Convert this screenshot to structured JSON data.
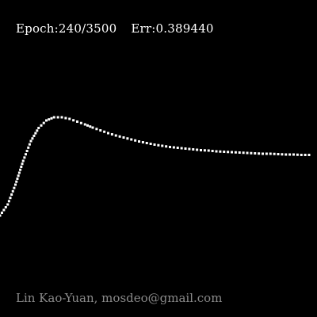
{
  "status": {
    "epoch_label": "Epoch:240/3500",
    "error_label": "Err:0.389440"
  },
  "credit": "Lin Kao-Yuan, mosdeo@gmail.com",
  "colors": {
    "background": "#000000",
    "curve": "#ffffff",
    "status_text": "#ffffff",
    "credit_text": "#8a8a8a"
  },
  "chart_data": {
    "type": "line",
    "style": "dotted",
    "axes_visible": false,
    "grid": false,
    "x": [
      0,
      1,
      2,
      3,
      4,
      5,
      6,
      7,
      8,
      9,
      10,
      11,
      12,
      13,
      14,
      15,
      16,
      17,
      18,
      19,
      20,
      21,
      22,
      23,
      24,
      25,
      26,
      27,
      28,
      29,
      30,
      31,
      32,
      33,
      34,
      35,
      36,
      37,
      38,
      39,
      40
    ],
    "y": [
      0.52,
      0.8,
      1.3,
      1.9,
      2.4,
      2.73,
      2.92,
      3.0,
      3.0,
      2.96,
      2.89,
      2.82,
      2.74,
      2.67,
      2.6,
      2.54,
      2.49,
      2.44,
      2.39,
      2.35,
      2.31,
      2.28,
      2.25,
      2.23,
      2.21,
      2.19,
      2.17,
      2.16,
      2.14,
      2.13,
      2.12,
      2.11,
      2.1,
      2.09,
      2.08,
      2.08,
      2.07,
      2.06,
      2.06,
      2.05,
      2.05
    ],
    "xlim": [
      0,
      40
    ],
    "ylim": [
      0,
      4
    ]
  }
}
